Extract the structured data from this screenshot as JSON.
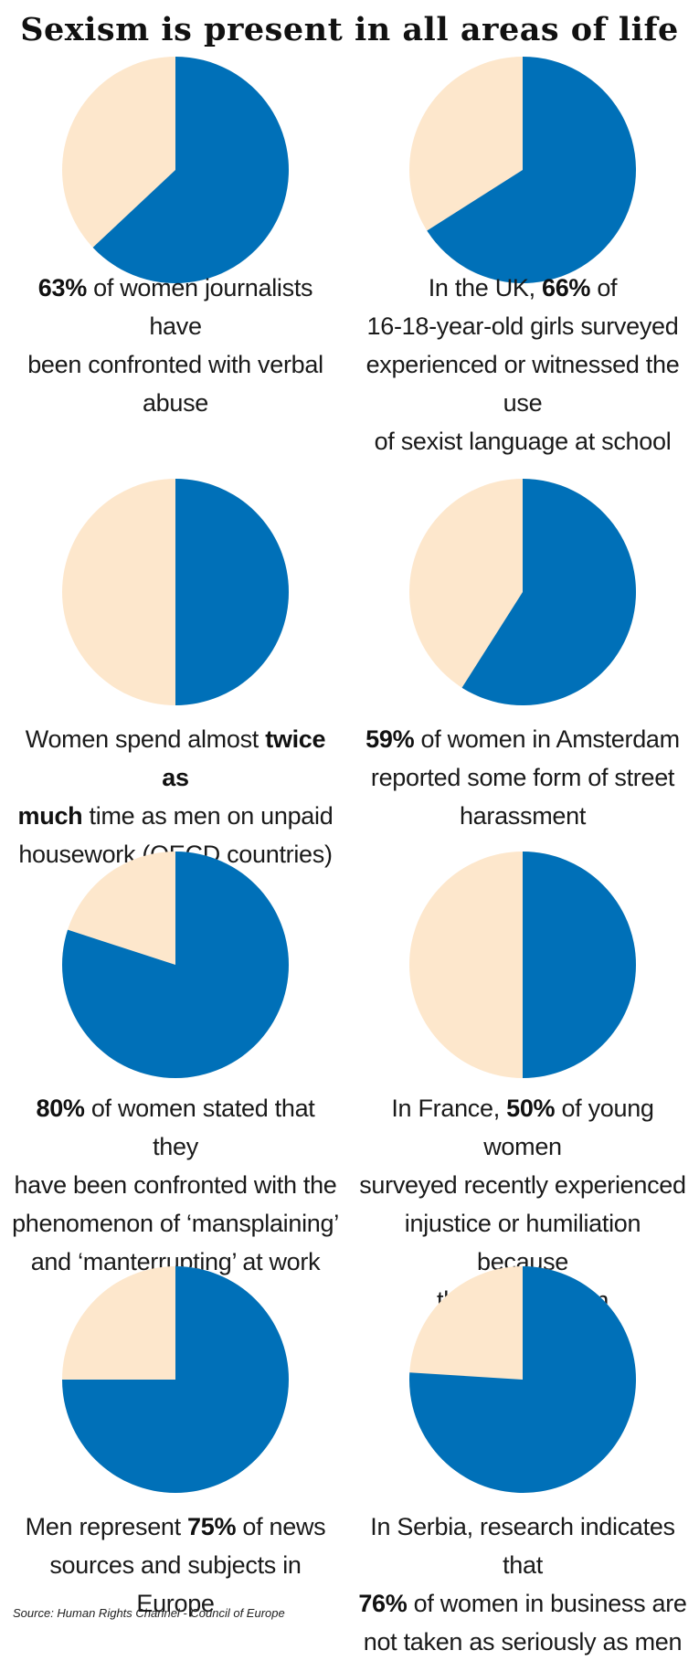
{
  "title": "Sexism is present in all areas of life",
  "source": "Source: Human Rights Channel - Council of Europe",
  "colors": {
    "women_share": "#0070b8",
    "rest": "#fde7cc"
  },
  "chart_data": [
    {
      "type": "pie",
      "slices": [
        {
          "label": "share",
          "value": 63
        },
        {
          "label": "rest",
          "value": 37
        }
      ],
      "caption": [
        {
          "bold": "63%",
          "text": " of women journalists have"
        },
        {
          "text": "been confronted with verbal"
        },
        {
          "text": "abuse"
        }
      ]
    },
    {
      "type": "pie",
      "slices": [
        {
          "label": "share",
          "value": 66
        },
        {
          "label": "rest",
          "value": 34
        }
      ],
      "caption": [
        {
          "pre": "In the UK, ",
          "bold": "66%",
          "text": " of"
        },
        {
          "text": "16-18-year-old girls surveyed"
        },
        {
          "text": "experienced or witnessed the use"
        },
        {
          "text": "of sexist language at school"
        }
      ]
    },
    {
      "type": "pie",
      "slices": [
        {
          "label": "share",
          "value": 50
        },
        {
          "label": "rest",
          "value": 50
        }
      ],
      "caption": [
        {
          "pre": "Women spend almost ",
          "bold": "twice as"
        },
        {
          "bold": "much",
          "text": " time as men on unpaid"
        },
        {
          "text": "housework (OECD countries)"
        }
      ]
    },
    {
      "type": "pie",
      "slices": [
        {
          "label": "share",
          "value": 59
        },
        {
          "label": "rest",
          "value": 41
        }
      ],
      "caption": [
        {
          "bold": "59%",
          "text": " of women in Amsterdam"
        },
        {
          "text": "reported some form of street"
        },
        {
          "text": "harassment"
        }
      ]
    },
    {
      "type": "pie",
      "slices": [
        {
          "label": "share",
          "value": 80
        },
        {
          "label": "rest",
          "value": 20
        }
      ],
      "caption": [
        {
          "bold": "80%",
          "text": " of women stated that they"
        },
        {
          "text": "have been confronted with the"
        },
        {
          "text": "phenomenon of ‘mansplaining’"
        },
        {
          "text": "and ‘manterrupting’ at work"
        }
      ]
    },
    {
      "type": "pie",
      "slices": [
        {
          "label": "share",
          "value": 50
        },
        {
          "label": "rest",
          "value": 50
        }
      ],
      "caption": [
        {
          "pre": "In France, ",
          "bold": "50%",
          "text": " of young women"
        },
        {
          "text": "surveyed recently experienced"
        },
        {
          "text": "injustice or humiliation because"
        },
        {
          "text": "they are women"
        }
      ]
    },
    {
      "type": "pie",
      "slices": [
        {
          "label": "share",
          "value": 75
        },
        {
          "label": "rest",
          "value": 25
        }
      ],
      "caption": [
        {
          "pre": "Men represent ",
          "bold": "75%",
          "text": " of news"
        },
        {
          "text": "sources and subjects in Europe"
        }
      ]
    },
    {
      "type": "pie",
      "slices": [
        {
          "label": "share",
          "value": 76
        },
        {
          "label": "rest",
          "value": 24
        }
      ],
      "caption": [
        {
          "pre": "In Serbia, research indicates that"
        },
        {
          "bold": "76%",
          "text": " of women in business are"
        },
        {
          "text": "not taken as seriously as men"
        }
      ]
    }
  ]
}
